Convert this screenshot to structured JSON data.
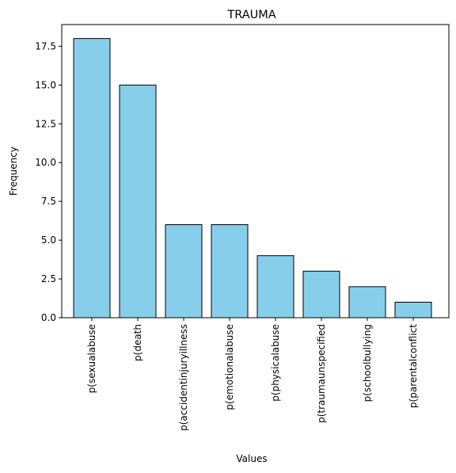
{
  "chart_data": {
    "type": "bar",
    "title": "TRAUMA",
    "xlabel": "Values",
    "ylabel": "Frequency",
    "categories": [
      "p(sexualabuse",
      "p(death",
      "p(accidentinjuryillness",
      "p(emotionalabuse",
      "p(physicalabuse",
      "p(traumaunspecified",
      "p(schoolbullying",
      "p(parentalconflict"
    ],
    "values": [
      18,
      15,
      6,
      6,
      4,
      3,
      2,
      1
    ],
    "ylim": [
      0,
      18.9
    ],
    "yticks": [
      "0.0",
      "2.5",
      "5.0",
      "7.5",
      "10.0",
      "12.5",
      "15.0",
      "17.5"
    ],
    "grid": false,
    "bar_color": "#87ceeb",
    "edge_color": "#000000"
  }
}
